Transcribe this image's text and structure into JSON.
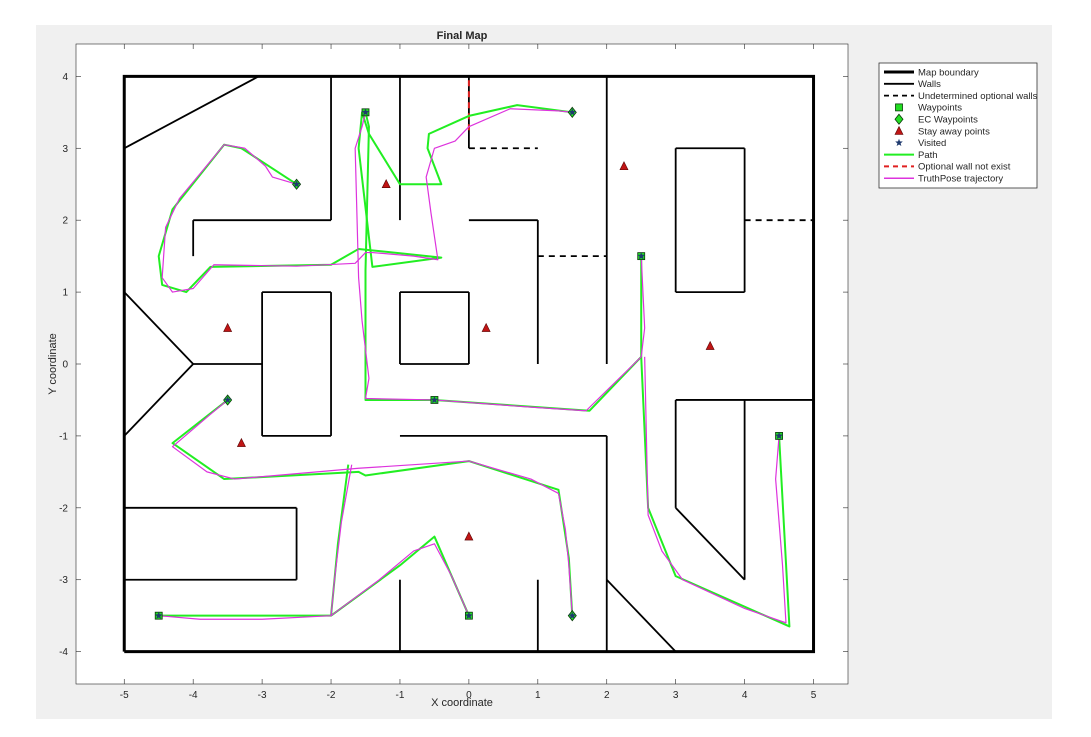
{
  "chart_data": {
    "type": "line",
    "title": "Final Map",
    "xlabel": "X coordinate",
    "ylabel": "Y coordinate",
    "xlim": [
      -5.7,
      5.5
    ],
    "ylim": [
      -4.45,
      4.45
    ],
    "xticks": [
      -5,
      -4,
      -3,
      -2,
      -1,
      0,
      1,
      2,
      3,
      4,
      5
    ],
    "yticks": [
      -4,
      -3,
      -2,
      -1,
      0,
      1,
      2,
      3,
      4
    ],
    "grid": false,
    "legend_position": "outside-top-right",
    "colors": {
      "boundary": "#000000",
      "walls": "#000000",
      "optional_walls": "#000000",
      "waypoints": "#22dd22",
      "stay_away": "#c01515",
      "visited": "#1f3a6e",
      "path": "#22ee22",
      "optional_not_exist": "#e02020",
      "truthpose": "#dd33dd"
    },
    "legend": [
      {
        "label": "Map boundary",
        "style": "thick-line"
      },
      {
        "label": "Walls",
        "style": "line"
      },
      {
        "label": "Undetermined optional walls",
        "style": "dashed-line"
      },
      {
        "label": "Waypoints",
        "style": "square"
      },
      {
        "label": "EC Waypoints",
        "style": "diamond"
      },
      {
        "label": "Stay away points",
        "style": "triangle"
      },
      {
        "label": "Visited",
        "style": "star"
      },
      {
        "label": "Path",
        "style": "green-line"
      },
      {
        "label": "Optional wall not exist",
        "style": "red-dashed-line"
      },
      {
        "label": "TruthPose trajectory",
        "style": "magenta-line"
      }
    ],
    "boundary": [
      [
        -5,
        -4
      ],
      [
        5,
        -4
      ],
      [
        5,
        4
      ],
      [
        -5,
        4
      ],
      [
        -5,
        -4
      ]
    ],
    "walls": [
      [
        [
          -5,
          3
        ],
        [
          -3.05,
          4
        ]
      ],
      [
        [
          -4,
          1.5
        ],
        [
          -4,
          2
        ]
      ],
      [
        [
          -4,
          2
        ],
        [
          -2,
          2
        ]
      ],
      [
        [
          -2,
          2
        ],
        [
          -2,
          4
        ]
      ],
      [
        [
          -1,
          2
        ],
        [
          -1,
          4
        ]
      ],
      [
        [
          0,
          2
        ],
        [
          1,
          2
        ]
      ],
      [
        [
          1,
          2
        ],
        [
          1,
          0
        ]
      ],
      [
        [
          0,
          3
        ],
        [
          0,
          4
        ]
      ],
      [
        [
          2,
          0
        ],
        [
          2,
          4
        ]
      ],
      [
        [
          3,
          1
        ],
        [
          4,
          1
        ]
      ],
      [
        [
          4,
          1
        ],
        [
          4,
          3
        ]
      ],
      [
        [
          4,
          3
        ],
        [
          3,
          3
        ]
      ],
      [
        [
          3,
          3
        ],
        [
          3,
          1
        ]
      ],
      [
        [
          -5,
          1
        ],
        [
          -4,
          0
        ]
      ],
      [
        [
          -4,
          0
        ],
        [
          -5,
          -1
        ]
      ],
      [
        [
          -4,
          0
        ],
        [
          -3,
          0
        ]
      ],
      [
        [
          -3,
          -1
        ],
        [
          -3,
          1
        ]
      ],
      [
        [
          -3,
          1
        ],
        [
          -2,
          1
        ]
      ],
      [
        [
          -2,
          1
        ],
        [
          -2,
          -1
        ]
      ],
      [
        [
          -2,
          -1
        ],
        [
          -3,
          -1
        ]
      ],
      [
        [
          -1,
          0
        ],
        [
          -1,
          1
        ]
      ],
      [
        [
          -1,
          1
        ],
        [
          0,
          1
        ]
      ],
      [
        [
          0,
          1
        ],
        [
          0,
          0
        ]
      ],
      [
        [
          0,
          0
        ],
        [
          -1,
          0
        ]
      ],
      [
        [
          -1,
          -1
        ],
        [
          2,
          -1
        ]
      ],
      [
        [
          2,
          -1
        ],
        [
          2,
          -4
        ]
      ],
      [
        [
          3,
          -2
        ],
        [
          3,
          -0.5
        ]
      ],
      [
        [
          3,
          -0.5
        ],
        [
          5,
          -0.5
        ]
      ],
      [
        [
          3,
          -2
        ],
        [
          4,
          -3
        ]
      ],
      [
        [
          4,
          -3
        ],
        [
          4,
          -0.5
        ]
      ],
      [
        [
          -5,
          -2
        ],
        [
          -2.5,
          -2
        ]
      ],
      [
        [
          -2.5,
          -2
        ],
        [
          -2.5,
          -3
        ]
      ],
      [
        [
          -2.5,
          -3
        ],
        [
          -5,
          -3
        ]
      ],
      [
        [
          -1,
          -3
        ],
        [
          -1,
          -4
        ]
      ],
      [
        [
          1,
          -3
        ],
        [
          1,
          -4
        ]
      ],
      [
        [
          2,
          -3
        ],
        [
          3,
          -4
        ]
      ]
    ],
    "optional_walls": [
      [
        [
          0,
          3
        ],
        [
          1,
          3
        ]
      ],
      [
        [
          1,
          1.5
        ],
        [
          2,
          1.5
        ]
      ],
      [
        [
          4,
          2
        ],
        [
          5,
          2
        ]
      ]
    ],
    "optional_walls_not_exist": [
      [
        [
          0,
          3.25
        ],
        [
          0,
          4
        ]
      ]
    ],
    "waypoints": [
      [
        -1.5,
        3.5
      ],
      [
        2.5,
        1.5
      ],
      [
        -0.5,
        -0.5
      ],
      [
        4.5,
        -1
      ],
      [
        -4.5,
        -3.5
      ],
      [
        0,
        -3.5
      ]
    ],
    "ec_waypoints": [
      [
        1.5,
        3.5
      ],
      [
        -2.5,
        2.5
      ],
      [
        -3.5,
        -0.5
      ],
      [
        1.5,
        -3.5
      ]
    ],
    "stay_away_points": [
      [
        -1.2,
        2.5
      ],
      [
        2.25,
        2.75
      ],
      [
        -3.5,
        0.5
      ],
      [
        0.25,
        0.5
      ],
      [
        3.5,
        0.25
      ],
      [
        -3.3,
        -1.1
      ],
      [
        0,
        -2.4
      ]
    ],
    "series": [
      {
        "name": "Path",
        "x": [
          -2.5,
          -3.3,
          -3.55,
          -4.3,
          -4.5,
          -4.45,
          -4.1,
          -3.75,
          -2.0,
          -1.6,
          -0.4,
          -1.4,
          -1.6,
          -1.55,
          -1.45,
          -1.0,
          -0.4,
          -0.6,
          -0.58,
          0.0,
          0.7,
          1.5
        ],
        "y": [
          2.5,
          3.0,
          3.05,
          2.15,
          1.5,
          1.1,
          1.0,
          1.35,
          1.38,
          1.6,
          1.48,
          1.35,
          3.0,
          3.5,
          3.2,
          2.5,
          2.5,
          3.0,
          3.2,
          3.45,
          3.6,
          3.5
        ]
      },
      {
        "name": "Path",
        "x": [
          -1.5,
          -1.45,
          -1.5,
          -1.5,
          -1.5,
          -0.5,
          1.75,
          2.5,
          2.5
        ],
        "y": [
          3.5,
          3.3,
          1.3,
          0.5,
          -0.5,
          -0.5,
          -0.65,
          0.1,
          1.5
        ]
      },
      {
        "name": "Path",
        "x": [
          -3.5,
          -4.3,
          -3.55,
          -1.6,
          -1.5,
          0.0,
          1.3,
          1.45,
          1.5
        ],
        "y": [
          -0.5,
          -1.1,
          -1.6,
          -1.5,
          -1.55,
          -1.35,
          -1.75,
          -2.7,
          -3.5
        ]
      },
      {
        "name": "Path",
        "x": [
          -1.75,
          -1.9,
          -2.0,
          -4.5
        ],
        "y": [
          -1.4,
          -2.5,
          -3.5,
          -3.5
        ]
      },
      {
        "name": "Path",
        "x": [
          -2.0,
          -1.0,
          -0.5,
          0.0
        ],
        "y": [
          -3.5,
          -2.8,
          -2.4,
          -3.5
        ]
      },
      {
        "name": "Path",
        "x": [
          2.5,
          2.6,
          3.0,
          4.65,
          4.5
        ],
        "y": [
          0.1,
          -2.0,
          -2.95,
          -3.65,
          -1.0
        ]
      },
      {
        "name": "TruthPose trajectory",
        "x": [
          -2.5,
          -2.85,
          -2.95,
          -3.25,
          -3.55,
          -4.2,
          -4.4,
          -4.45,
          -4.3,
          -4.0,
          -3.7,
          -2.5,
          -1.65,
          -1.5,
          -1.4,
          -0.8,
          -0.45,
          -0.55,
          -0.62,
          -0.5,
          -0.2,
          0.0,
          0.6,
          1.3,
          1.5
        ],
        "y": [
          2.5,
          2.6,
          2.75,
          3.0,
          3.05,
          2.3,
          1.9,
          1.2,
          1.0,
          1.05,
          1.38,
          1.36,
          1.4,
          1.55,
          1.55,
          1.5,
          1.45,
          2.1,
          2.6,
          3.0,
          3.1,
          3.3,
          3.55,
          3.52,
          3.5
        ]
      },
      {
        "name": "TruthPose trajectory",
        "x": [
          -1.5,
          -1.55,
          -1.65,
          -1.6,
          -1.55,
          -1.45,
          -1.5,
          -0.5,
          0.9,
          1.7,
          2.5,
          2.55,
          2.5
        ],
        "y": [
          3.5,
          3.3,
          3.0,
          1.2,
          0.6,
          -0.2,
          -0.48,
          -0.5,
          -0.6,
          -0.65,
          0.1,
          0.5,
          1.5
        ]
      },
      {
        "name": "TruthPose trajectory",
        "x": [
          -3.5,
          -3.75,
          -4.3,
          -3.8,
          -3.4,
          -1.6,
          0.0,
          0.9,
          1.3,
          1.4,
          1.45,
          1.5
        ],
        "y": [
          -0.5,
          -0.7,
          -1.15,
          -1.5,
          -1.6,
          -1.45,
          -1.35,
          -1.6,
          -1.8,
          -2.3,
          -2.8,
          -3.5
        ]
      },
      {
        "name": "TruthPose trajectory",
        "x": [
          -1.7,
          -1.85,
          -1.95,
          -2.0,
          -3.0,
          -3.9,
          -4.5
        ],
        "y": [
          -1.4,
          -2.2,
          -3.0,
          -3.5,
          -3.55,
          -3.55,
          -3.5
        ]
      },
      {
        "name": "TruthPose trajectory",
        "x": [
          -2.0,
          -1.3,
          -0.8,
          -0.5,
          -0.25,
          0.0
        ],
        "y": [
          -3.5,
          -3.0,
          -2.6,
          -2.5,
          -2.95,
          -3.5
        ]
      },
      {
        "name": "TruthPose trajectory",
        "x": [
          2.55,
          2.6,
          2.8,
          3.1,
          4.0,
          4.6,
          4.55,
          4.45,
          4.5
        ],
        "y": [
          0.1,
          -2.1,
          -2.6,
          -3.0,
          -3.4,
          -3.6,
          -2.8,
          -1.6,
          -1.0
        ]
      }
    ]
  }
}
